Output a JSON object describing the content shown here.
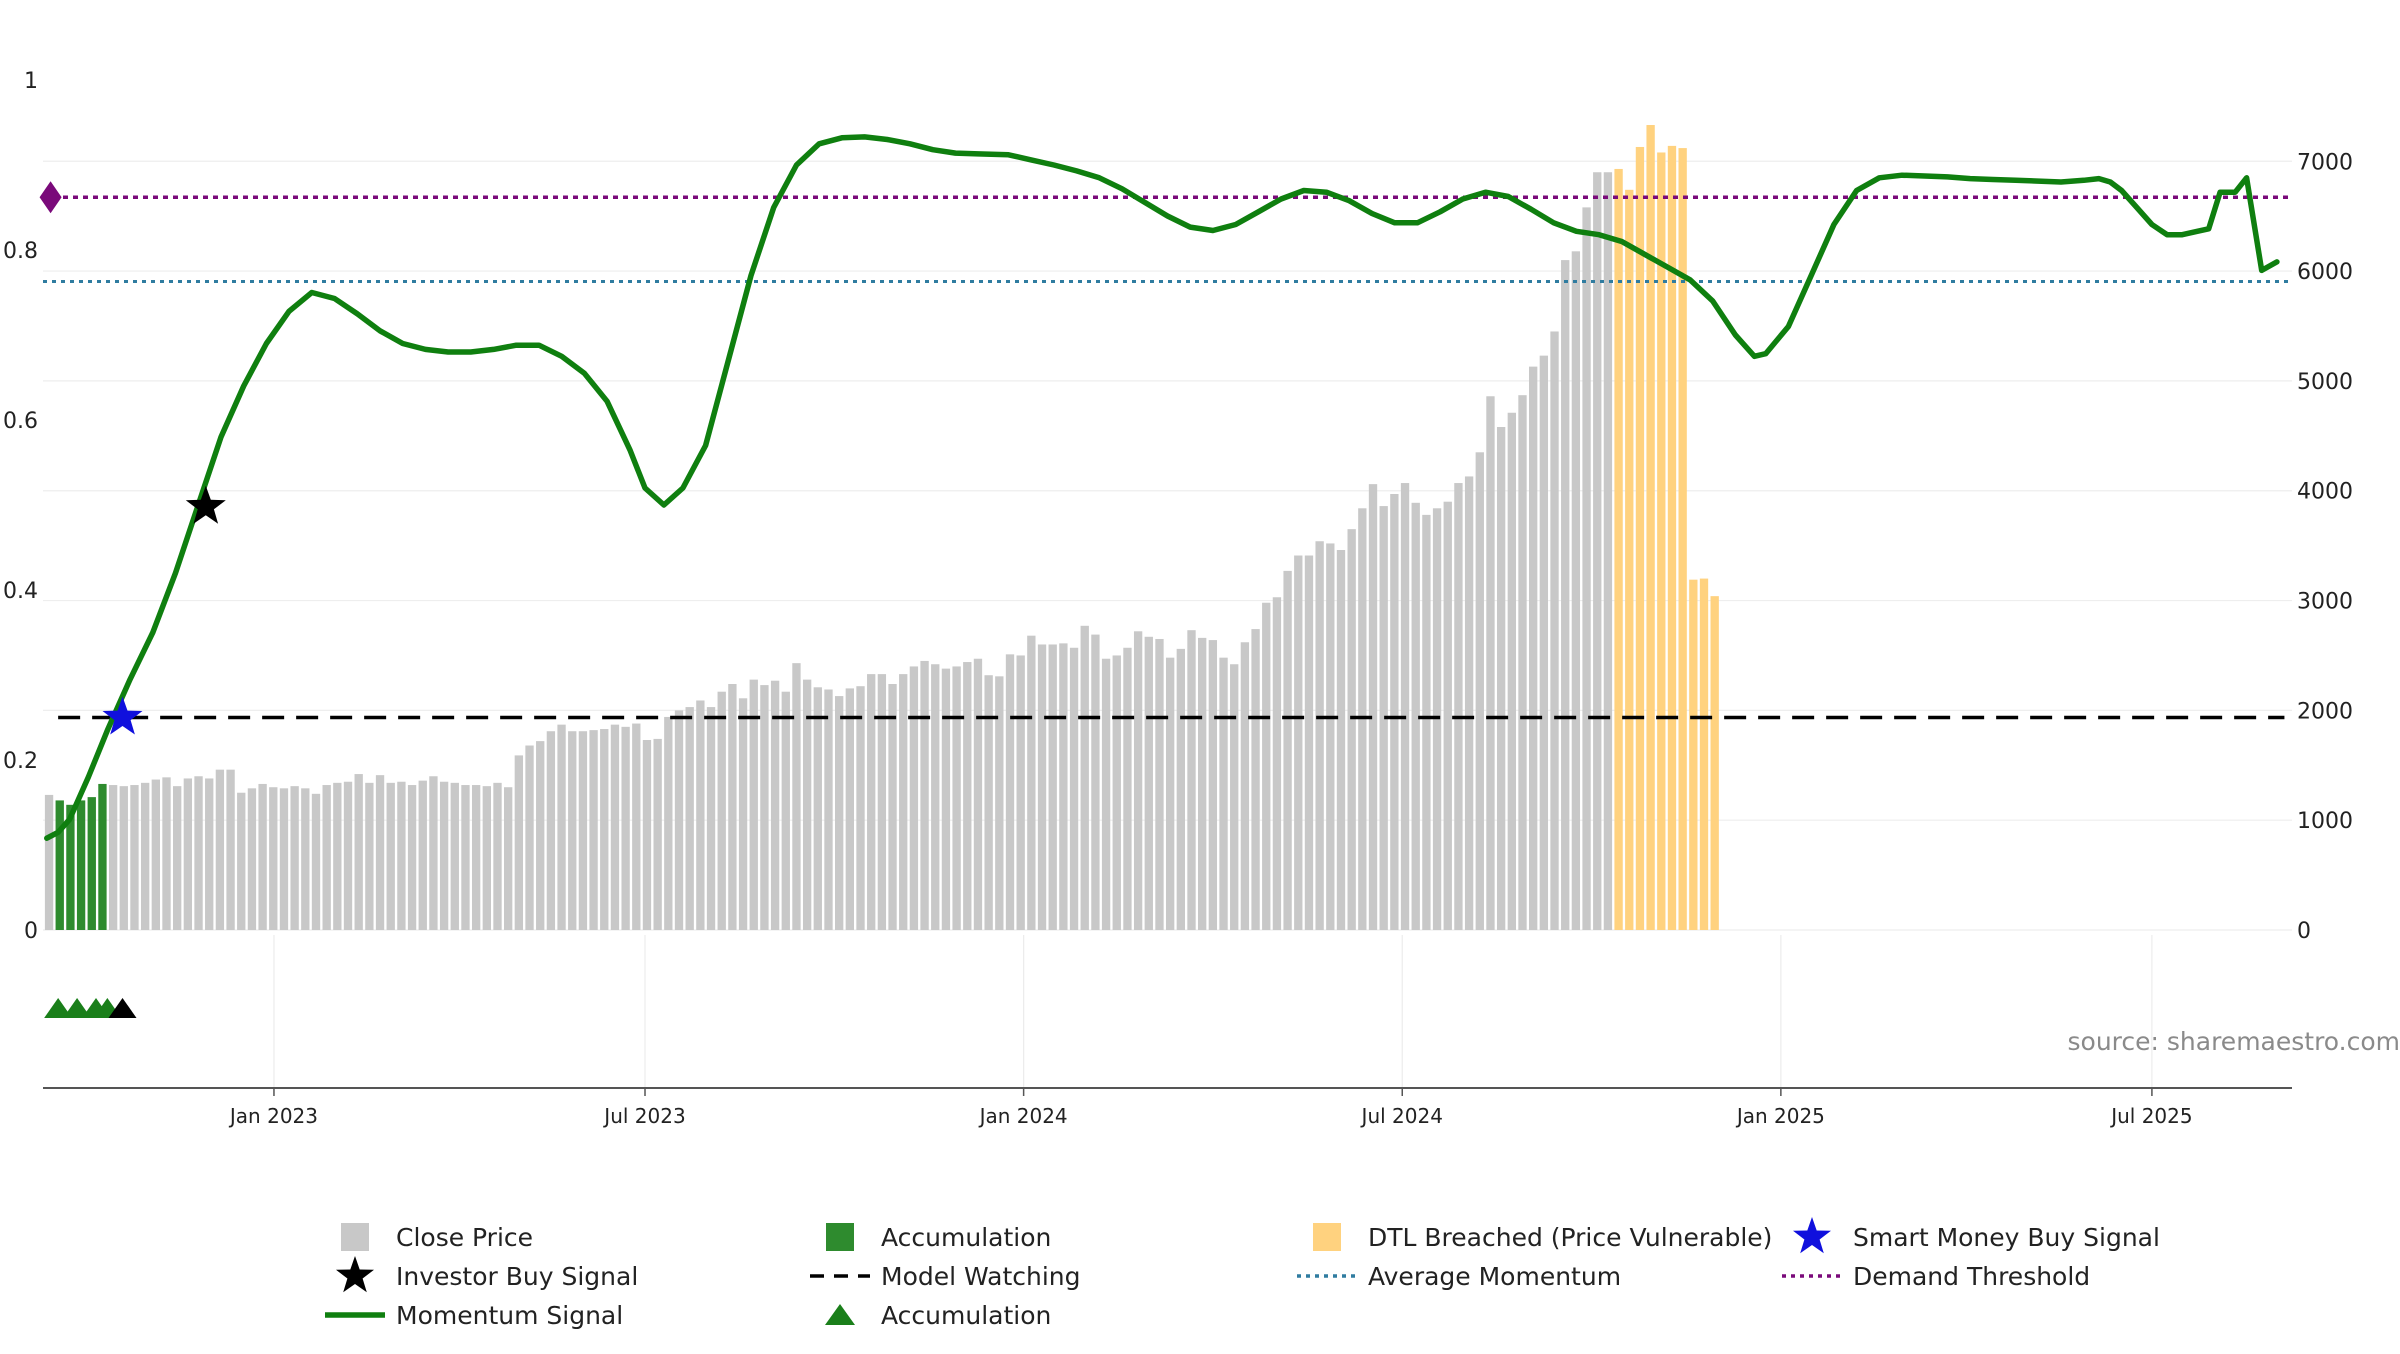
{
  "chart_data": {
    "type": "bar",
    "title": "",
    "colors": {
      "close_price": "#c8c8c8",
      "accumulation_bar": "#2e8b2e",
      "dtl_breached": "#ffd27f",
      "momentum": "#0f7f0f",
      "investor_star": "#000000",
      "smart_money_star": "#1010dd",
      "model_watching": "#000000",
      "average_momentum": "#2f7ca0",
      "demand_threshold": "#7a0a7a",
      "triangle_accum": "#1a7f1a",
      "triangle_investor": "#000000"
    },
    "left_axis": {
      "range": [
        0,
        1
      ],
      "ticks": [
        "0",
        "0.2",
        "0.4",
        "0.6",
        "0.8",
        "1"
      ]
    },
    "right_axis": {
      "range": [
        0,
        7700
      ],
      "ticks": [
        "0",
        "1000",
        "2000",
        "3000",
        "4000",
        "5000",
        "6000",
        "7000"
      ]
    },
    "x_range": [
      2022.725,
      2025.695
    ],
    "x_ticks": [
      {
        "label": "Jan 2023",
        "x": 2023.03
      },
      {
        "label": "Jul 2023",
        "x": 2023.52
      },
      {
        "label": "Jan 2024",
        "x": 2024.02
      },
      {
        "label": "Jul 2024",
        "x": 2024.52
      },
      {
        "label": "Jan 2025",
        "x": 2025.02
      },
      {
        "label": "Jul 2025",
        "x": 2025.51
      }
    ],
    "bar_start_x": 2022.733,
    "bar_step": 0.0141,
    "close_price": [
      1230,
      1180,
      1140,
      1180,
      1210,
      1330,
      1320,
      1310,
      1320,
      1340,
      1370,
      1390,
      1310,
      1380,
      1400,
      1380,
      1460,
      1460,
      1250,
      1290,
      1330,
      1300,
      1290,
      1310,
      1290,
      1240,
      1320,
      1340,
      1350,
      1420,
      1340,
      1410,
      1340,
      1350,
      1320,
      1360,
      1400,
      1350,
      1340,
      1320,
      1320,
      1310,
      1340,
      1300,
      1590,
      1680,
      1720,
      1810,
      1870,
      1810,
      1810,
      1820,
      1830,
      1870,
      1850,
      1880,
      1730,
      1740,
      1940,
      2000,
      2030,
      2090,
      2030,
      2170,
      2240,
      2110,
      2280,
      2230,
      2270,
      2170,
      2430,
      2280,
      2210,
      2190,
      2130,
      2200,
      2220,
      2330,
      2330,
      2240,
      2330,
      2400,
      2450,
      2420,
      2380,
      2400,
      2440,
      2470,
      2320,
      2310,
      2510,
      2500,
      2680,
      2600,
      2600,
      2610,
      2570,
      2770,
      2690,
      2470,
      2500,
      2570,
      2720,
      2670,
      2650,
      2480,
      2560,
      2730,
      2660,
      2640,
      2480,
      2420,
      2620,
      2740,
      2980,
      3030,
      3270,
      3410,
      3410,
      3540,
      3520,
      3460,
      3650,
      3840,
      4060,
      3860,
      3970,
      4070,
      3890,
      3780,
      3840,
      3900,
      4070,
      4130,
      4350,
      4860,
      4580,
      4710,
      4870,
      5130,
      5230,
      5450,
      6100,
      6180,
      6580,
      6900,
      6900,
      6930,
      6740,
      7130,
      7330,
      7080,
      7140,
      7120,
      3190,
      3200,
      3040
    ],
    "accumulation_bar_indices": [
      1,
      2,
      3,
      4,
      5
    ],
    "dtl_breached_indices": [
      147,
      148,
      149,
      150,
      151,
      152,
      153,
      154,
      155,
      156
    ],
    "momentum": [
      [
        2022.73,
        0.108
      ],
      [
        2022.745,
        0.115
      ],
      [
        2022.76,
        0.13
      ],
      [
        2022.785,
        0.18
      ],
      [
        2022.81,
        0.235
      ],
      [
        2022.84,
        0.295
      ],
      [
        2022.87,
        0.35
      ],
      [
        2022.9,
        0.42
      ],
      [
        2022.93,
        0.5
      ],
      [
        2022.96,
        0.58
      ],
      [
        2022.99,
        0.64
      ],
      [
        2023.02,
        0.69
      ],
      [
        2023.05,
        0.728
      ],
      [
        2023.08,
        0.75
      ],
      [
        2023.11,
        0.743
      ],
      [
        2023.14,
        0.725
      ],
      [
        2023.17,
        0.705
      ],
      [
        2023.2,
        0.69
      ],
      [
        2023.23,
        0.683
      ],
      [
        2023.26,
        0.68
      ],
      [
        2023.29,
        0.68
      ],
      [
        2023.32,
        0.683
      ],
      [
        2023.35,
        0.688
      ],
      [
        2023.38,
        0.688
      ],
      [
        2023.41,
        0.675
      ],
      [
        2023.44,
        0.655
      ],
      [
        2023.47,
        0.622
      ],
      [
        2023.5,
        0.565
      ],
      [
        2023.52,
        0.52
      ],
      [
        2023.545,
        0.5
      ],
      [
        2023.57,
        0.52
      ],
      [
        2023.6,
        0.57
      ],
      [
        2023.63,
        0.67
      ],
      [
        2023.66,
        0.77
      ],
      [
        2023.69,
        0.85
      ],
      [
        2023.72,
        0.9
      ],
      [
        2023.75,
        0.925
      ],
      [
        2023.78,
        0.932
      ],
      [
        2023.81,
        0.933
      ],
      [
        2023.84,
        0.93
      ],
      [
        2023.87,
        0.925
      ],
      [
        2023.9,
        0.918
      ],
      [
        2023.93,
        0.914
      ],
      [
        2023.96,
        0.913
      ],
      [
        2024.0,
        0.912
      ],
      [
        2024.03,
        0.906
      ],
      [
        2024.06,
        0.9
      ],
      [
        2024.09,
        0.893
      ],
      [
        2024.12,
        0.885
      ],
      [
        2024.15,
        0.872
      ],
      [
        2024.18,
        0.856
      ],
      [
        2024.21,
        0.84
      ],
      [
        2024.24,
        0.827
      ],
      [
        2024.27,
        0.823
      ],
      [
        2024.3,
        0.83
      ],
      [
        2024.33,
        0.845
      ],
      [
        2024.36,
        0.86
      ],
      [
        2024.39,
        0.87
      ],
      [
        2024.42,
        0.868
      ],
      [
        2024.45,
        0.858
      ],
      [
        2024.48,
        0.843
      ],
      [
        2024.51,
        0.832
      ],
      [
        2024.54,
        0.832
      ],
      [
        2024.57,
        0.845
      ],
      [
        2024.6,
        0.86
      ],
      [
        2024.63,
        0.868
      ],
      [
        2024.66,
        0.863
      ],
      [
        2024.69,
        0.848
      ],
      [
        2024.72,
        0.832
      ],
      [
        2024.75,
        0.822
      ],
      [
        2024.78,
        0.818
      ],
      [
        2024.81,
        0.81
      ],
      [
        2024.84,
        0.795
      ],
      [
        2024.87,
        0.78
      ],
      [
        2024.9,
        0.765
      ],
      [
        2024.93,
        0.74
      ],
      [
        2024.96,
        0.7
      ],
      [
        2024.985,
        0.675
      ],
      [
        2025.0,
        0.678
      ],
      [
        2025.03,
        0.71
      ],
      [
        2025.06,
        0.77
      ],
      [
        2025.09,
        0.83
      ],
      [
        2025.12,
        0.87
      ],
      [
        2025.15,
        0.885
      ],
      [
        2025.18,
        0.888
      ],
      [
        2025.21,
        0.887
      ],
      [
        2025.24,
        0.886
      ],
      [
        2025.27,
        0.884
      ],
      [
        2025.3,
        0.883
      ],
      [
        2025.33,
        0.882
      ],
      [
        2025.36,
        0.881
      ],
      [
        2025.39,
        0.88
      ],
      [
        2025.42,
        0.882
      ],
      [
        2025.44,
        0.884
      ],
      [
        2025.455,
        0.88
      ],
      [
        2025.47,
        0.87
      ],
      [
        2025.49,
        0.85
      ],
      [
        2025.51,
        0.83
      ],
      [
        2025.53,
        0.818
      ],
      [
        2025.55,
        0.818
      ],
      [
        2025.57,
        0.822
      ],
      [
        2025.585,
        0.825
      ],
      [
        2025.6,
        0.868
      ],
      [
        2025.62,
        0.868
      ],
      [
        2025.635,
        0.885
      ],
      [
        2025.655,
        0.776
      ],
      [
        2025.675,
        0.786
      ]
    ],
    "average_momentum": 0.763,
    "demand_threshold": 0.862,
    "model_watching": 0.25,
    "model_watching_range": [
      2022.745,
      2025.685
    ],
    "investor_buy_signal": [
      2022.94,
      0.498
    ],
    "smart_money_buy_signal": [
      2022.83,
      0.25
    ],
    "demand_marker": [
      2022.735,
      0.862
    ],
    "accumulation_triangles_x": [
      2022.745,
      2022.77,
      2022.795,
      2022.81
    ],
    "investor_triangle_x": [
      2022.83
    ],
    "annotation_text": "source: sharemaestro.com",
    "legend": [
      {
        "label": "Close Price",
        "marker": "gray-square"
      },
      {
        "label": "Accumulation",
        "marker": "green-square"
      },
      {
        "label": "DTL Breached (Price Vulnerable)",
        "marker": "orange-square"
      },
      {
        "label": "Smart Money Buy Signal",
        "marker": "blue-star"
      },
      {
        "label": "Investor Buy Signal",
        "marker": "black-star"
      },
      {
        "label": "Model Watching",
        "marker": "black-dash"
      },
      {
        "label": "Average Momentum",
        "marker": "blue-dotted"
      },
      {
        "label": "Demand Threshold",
        "marker": "purple-dotted"
      },
      {
        "label": "Momentum Signal",
        "marker": "green-line"
      },
      {
        "label": "Accumulation",
        "marker": "green-triangle"
      }
    ]
  }
}
